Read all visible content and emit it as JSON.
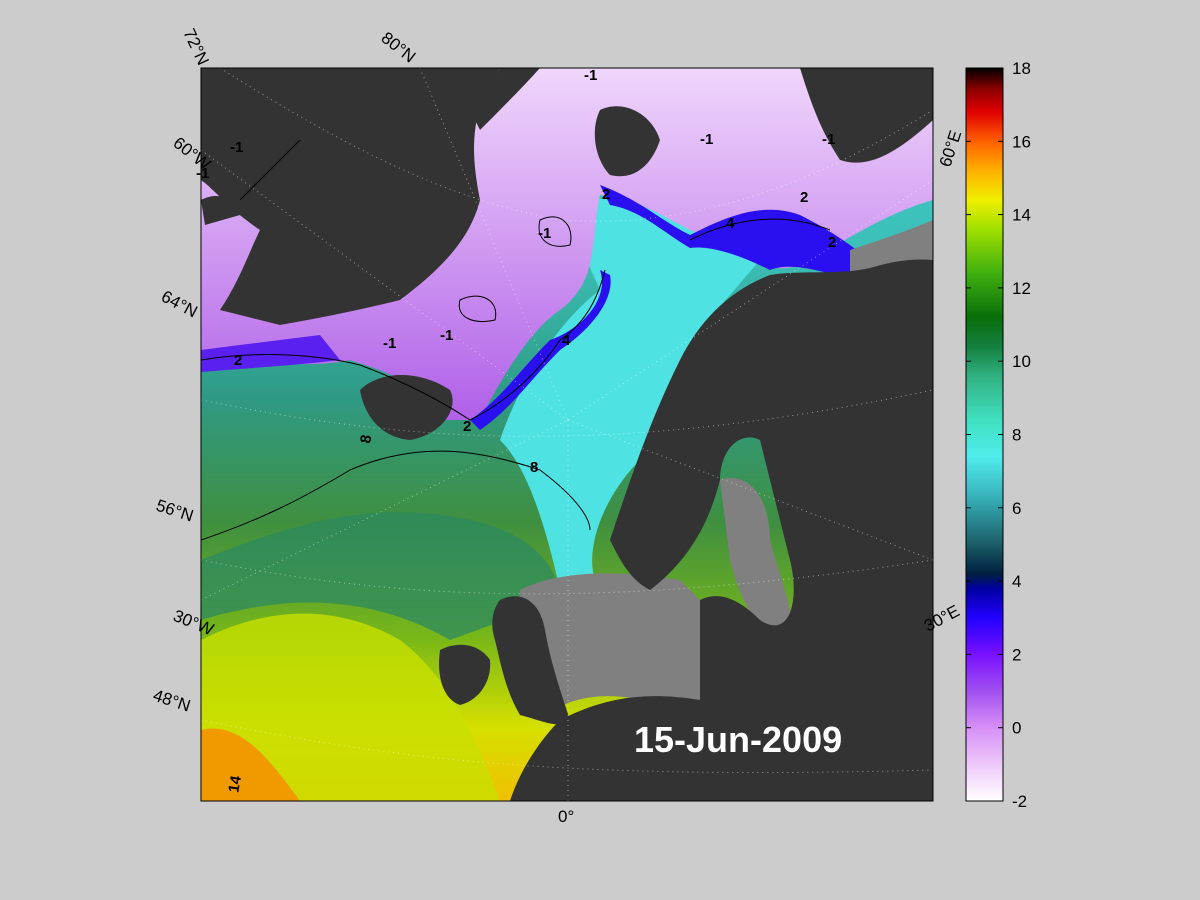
{
  "map": {
    "date_label": "15-Jun-2009",
    "lat_labels": [
      "72°N",
      "64°N",
      "56°N",
      "48°N"
    ],
    "lon_labels": [
      "80°N",
      "60°W",
      "30°W",
      "0°",
      "60°E",
      "30°E"
    ],
    "contour_labels": [
      "-1",
      "-1",
      "-1",
      "-1",
      "-1",
      "-1",
      "-1",
      "-1",
      "2",
      "2",
      "2",
      "2",
      "2",
      "4",
      "4",
      "8",
      "8",
      "14"
    ],
    "colors": {
      "land": "#333333",
      "no_data": "#808080",
      "background": "#cccccc"
    }
  },
  "colorbar": {
    "ticks": [
      "18",
      "16",
      "14",
      "12",
      "10",
      "8",
      "6",
      "4",
      "2",
      "0",
      "-2"
    ],
    "range": [
      -2,
      18
    ],
    "stops": [
      "#ffffff",
      "#e9b4f8",
      "#b04ff0",
      "#8800ff",
      "#2200ff",
      "#0000b0",
      "#004050",
      "#1c6e70",
      "#40d6d6",
      "#3fe0c0",
      "#20a060",
      "#0a7010",
      "#40b010",
      "#a8e000",
      "#f0e000",
      "#ff9000",
      "#ff4000",
      "#e00000",
      "#a00000",
      "#000000"
    ]
  }
}
